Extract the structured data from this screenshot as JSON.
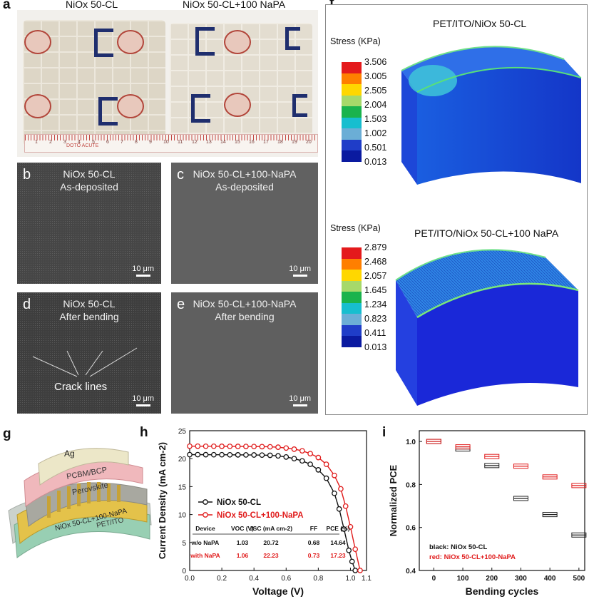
{
  "panel_a": {
    "label": "a",
    "left_title": "NiOx 50-CL",
    "right_title": "NiOx 50-CL+100 NaPA",
    "ruler_text": "DOTO ACUTE",
    "ruler_numbers": [
      "1",
      "2",
      "3",
      "4",
      "5",
      "6",
      "7",
      "8",
      "9",
      "10",
      "11",
      "12",
      "13",
      "14",
      "15",
      "16",
      "17",
      "18",
      "19",
      "20"
    ]
  },
  "sem_panels": [
    {
      "label": "b",
      "line1": "NiOx 50-CL",
      "line2": "As-deposited",
      "scale": "10 μm"
    },
    {
      "label": "c",
      "line1": "NiOx 50-CL+100-NaPA",
      "line2": "As-deposited",
      "scale": "10 μm"
    },
    {
      "label": "d",
      "line1": "NiOx 50-CL",
      "line2": "After bending",
      "scale": "10 μm",
      "annotation": "Crack lines"
    },
    {
      "label": "e",
      "line1": "NiOx 50-CL+100-NaPA",
      "line2": "After bending",
      "scale": "10 μm"
    }
  ],
  "panel_f": {
    "label": "f",
    "top": {
      "title": "PET/ITO/NiOx 50-CL",
      "legend_title": "Stress (KPa)",
      "ticks": [
        "3.506",
        "3.005",
        "2.505",
        "2.004",
        "1.503",
        "1.002",
        "0.501",
        "0.013"
      ]
    },
    "bottom": {
      "title": "PET/ITO/NiOx 50-CL+100 NaPA",
      "legend_title": "Stress (KPa)",
      "ticks": [
        "2.879",
        "2.468",
        "2.057",
        "1.645",
        "1.234",
        "0.823",
        "0.411",
        "0.013"
      ]
    },
    "colors": [
      "#e41a1c",
      "#ff7f00",
      "#ffd700",
      "#a6d96a",
      "#1ab34d",
      "#17becf",
      "#6baed6",
      "#1f3dc8",
      "#0a1aa0"
    ]
  },
  "panel_g": {
    "label": "g",
    "layers": [
      "Ag",
      "PCBM/BCP",
      "Perovskite",
      "NiOx 50-CL+100-NaPA",
      "PET/ITO"
    ]
  },
  "panel_h": {
    "label": "h",
    "series_names": [
      "NiOx 50-CL",
      "NiOx 50-CL+100-NaPA"
    ],
    "table_header": [
      "Device",
      "VOC (V)",
      "JSC (mA cm-2)",
      "FF",
      "PCE (%)"
    ],
    "table_rows": [
      [
        "w/o NaPA",
        "1.03",
        "20.72",
        "0.68",
        "14.64"
      ],
      [
        "with NaPA",
        "1.06",
        "22.23",
        "0.73",
        "17.23"
      ]
    ]
  },
  "panel_i": {
    "label": "i",
    "legend_line1": "black: NiOx 50-CL",
    "legend_line2": "red: NiOx 50-CL+100-NaPA"
  },
  "chart_data": [
    {
      "type": "line",
      "panel": "h",
      "xlabel": "Voltage (V)",
      "ylabel": "Current Density (mA cm-2)",
      "xlim": [
        0.0,
        1.1
      ],
      "ylim": [
        0,
        25
      ],
      "xticks": [
        0.0,
        0.2,
        0.4,
        0.6,
        0.8,
        1.0,
        1.1
      ],
      "yticks": [
        0,
        5,
        10,
        15,
        20,
        25
      ],
      "series": [
        {
          "name": "NiOx 50-CL",
          "color": "#111111",
          "x": [
            0.0,
            0.05,
            0.1,
            0.15,
            0.2,
            0.25,
            0.3,
            0.35,
            0.4,
            0.45,
            0.5,
            0.55,
            0.6,
            0.65,
            0.7,
            0.75,
            0.8,
            0.85,
            0.9,
            0.93,
            0.96,
            0.99,
            1.01,
            1.03
          ],
          "y": [
            20.72,
            20.72,
            20.71,
            20.7,
            20.7,
            20.69,
            20.68,
            20.67,
            20.66,
            20.64,
            20.6,
            20.5,
            20.3,
            20.0,
            19.6,
            19.0,
            18.0,
            16.5,
            13.8,
            11.0,
            7.4,
            3.6,
            1.6,
            0.0
          ]
        },
        {
          "name": "NiOx 50-CL+100-NaPA",
          "color": "#e01b1b",
          "x": [
            0.0,
            0.05,
            0.1,
            0.15,
            0.2,
            0.25,
            0.3,
            0.35,
            0.4,
            0.45,
            0.5,
            0.55,
            0.6,
            0.65,
            0.7,
            0.75,
            0.8,
            0.85,
            0.9,
            0.94,
            0.97,
            1.0,
            1.03,
            1.06
          ],
          "y": [
            22.23,
            22.23,
            22.22,
            22.22,
            22.21,
            22.2,
            22.19,
            22.18,
            22.17,
            22.15,
            22.12,
            22.05,
            21.9,
            21.7,
            21.4,
            20.9,
            20.2,
            19.0,
            17.0,
            14.6,
            11.5,
            7.8,
            3.8,
            0.0
          ]
        }
      ]
    },
    {
      "type": "box",
      "panel": "i",
      "xlabel": "Bending cycles",
      "ylabel": "Normalized PCE",
      "xlim": [
        -50,
        520
      ],
      "ylim": [
        0.4,
        1.05
      ],
      "xticks": [
        0,
        100,
        200,
        300,
        400,
        500
      ],
      "yticks": [
        0.4,
        0.6,
        0.8,
        1.0
      ],
      "series": [
        {
          "name": "black: NiOx 50-CL",
          "color": "#222222",
          "x": [
            0,
            100,
            200,
            300,
            400,
            500
          ],
          "y": [
            1.0,
            0.965,
            0.888,
            0.735,
            0.66,
            0.565
          ]
        },
        {
          "name": "red: NiOx 50-CL+100-NaPA",
          "color": "#e01b1b",
          "x": [
            0,
            100,
            200,
            300,
            400,
            500
          ],
          "y": [
            1.0,
            0.975,
            0.93,
            0.885,
            0.835,
            0.795
          ]
        }
      ]
    }
  ]
}
